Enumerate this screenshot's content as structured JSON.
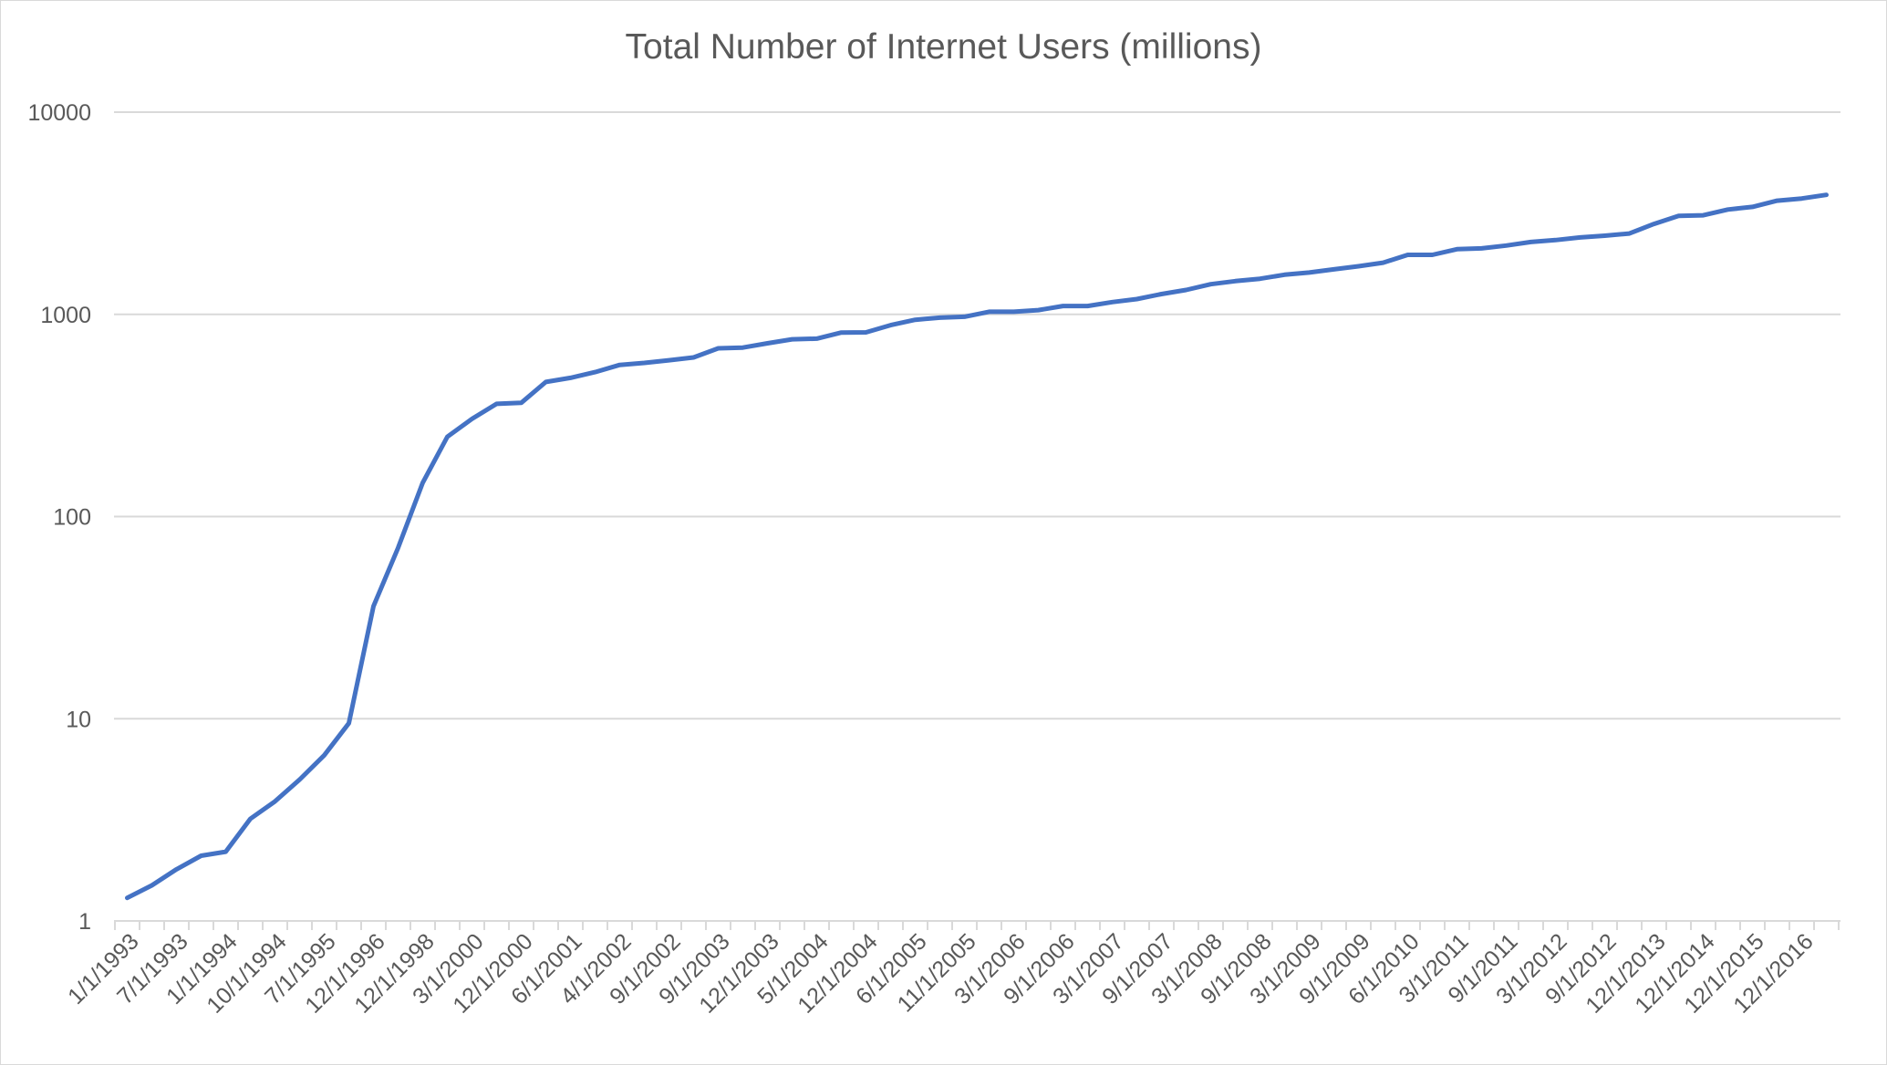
{
  "chart_data": {
    "type": "line",
    "title": "Total Number of Internet Users (millions)",
    "xlabel": "",
    "ylabel": "",
    "y_scale": "log",
    "ylim": [
      1,
      10000
    ],
    "y_ticks": [
      "1",
      "10",
      "100",
      "1000",
      "10000"
    ],
    "grid": true,
    "legend": "none",
    "x_tick_labels": [
      "1/1/1993",
      "7/1/1993",
      "1/1/1994",
      "10/1/1994",
      "7/1/1995",
      "12/1/1996",
      "12/1/1998",
      "3/1/2000",
      "12/1/2000",
      "6/1/2001",
      "4/1/2002",
      "9/1/2002",
      "9/1/2003",
      "12/1/2003",
      "5/1/2004",
      "12/1/2004",
      "6/1/2005",
      "11/1/2005",
      "3/1/2006",
      "9/1/2006",
      "3/1/2007",
      "9/1/2007",
      "3/1/2008",
      "9/1/2008",
      "3/1/2009",
      "9/1/2009",
      "6/1/2010",
      "3/1/2011",
      "9/1/2011",
      "3/1/2012",
      "9/1/2012",
      "12/1/2013",
      "12/1/2014",
      "12/1/2015",
      "12/1/2016"
    ],
    "series": [
      {
        "color": "#4472c4",
        "values": [
          1.3,
          1.5,
          1.8,
          2.1,
          2.2,
          3.2,
          3.9,
          5.0,
          6.6,
          9.5,
          36,
          70,
          147,
          248,
          304,
          361,
          365,
          463,
          485,
          518,
          562,
          575,
          593,
          612,
          679,
          685,
          719,
          753,
          758,
          813,
          815,
          884,
          940,
          963,
          973,
          1030,
          1030,
          1050,
          1100,
          1100,
          1150,
          1190,
          1260,
          1320,
          1410,
          1460,
          1500,
          1570,
          1610,
          1670,
          1730,
          1800,
          1970,
          1970,
          2100,
          2120,
          2190,
          2280,
          2330,
          2400,
          2450,
          2510,
          2800,
          3070,
          3090,
          3300,
          3400,
          3650,
          3740,
          3900
        ]
      }
    ]
  }
}
